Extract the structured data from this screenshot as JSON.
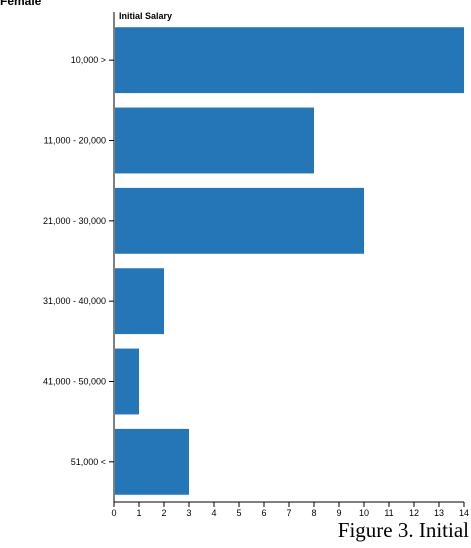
{
  "corner_label": "Female",
  "caption": "Figure 3. Initial",
  "colors": {
    "bar": "#2476b7",
    "axis": "#000000",
    "grid": "#d9d9d9"
  },
  "chart_data": {
    "type": "bar",
    "orientation": "horizontal",
    "title": "Initial Salary",
    "categories": [
      "10,000 >",
      "11,000 - 20,000",
      "21,000 - 30,000",
      "31,000 - 40,000",
      "41,000 - 50,000",
      "51,000 <"
    ],
    "values": [
      14,
      8,
      10,
      2,
      1,
      3
    ],
    "xlim": [
      0,
      14
    ],
    "x_ticks": [
      0,
      1,
      2,
      3,
      4,
      5,
      6,
      7,
      8,
      9,
      10,
      11,
      12,
      13,
      14
    ],
    "xlabel": "",
    "ylabel": "",
    "grid": false,
    "legend": "none"
  }
}
